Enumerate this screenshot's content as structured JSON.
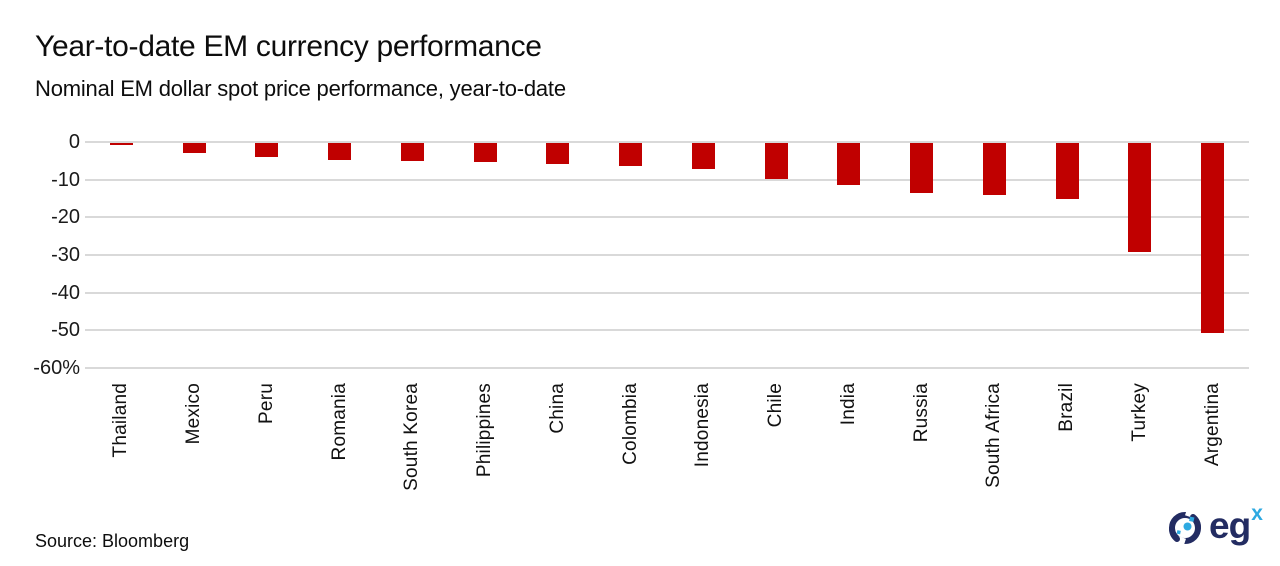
{
  "chart_data": {
    "type": "bar",
    "title": "Year-to-date EM currency performance",
    "subtitle": "Nominal EM dollar spot price performance, year-to-date",
    "categories": [
      "Thailand",
      "Mexico",
      "Peru",
      "Romania",
      "South Korea",
      "Philippines",
      "China",
      "Colombia",
      "Indonesia",
      "Chile",
      "India",
      "Russia",
      "South Africa",
      "Brazil",
      "Turkey",
      "Argentina"
    ],
    "values": [
      -0.6,
      -2.9,
      -4.0,
      -4.9,
      -5.0,
      -5.2,
      -5.9,
      -6.5,
      -7.1,
      -9.8,
      -11.5,
      -13.6,
      -14.2,
      -15.0,
      -29.3,
      -50.6
    ],
    "xlabel": "",
    "ylabel": "",
    "ylim": [
      -60,
      0
    ],
    "yticks": [
      0,
      -10,
      -20,
      -30,
      -40,
      -50,
      -60
    ],
    "ytick_labels": [
      "0",
      "-10",
      "-20",
      "-30",
      "-40",
      "-50",
      "-60%"
    ],
    "grid": true,
    "legend": false,
    "bar_color": "#c00000",
    "gridline_color": "#d9d9d9"
  },
  "footer": {
    "source": "Source: Bloomberg",
    "logo_text": "eg",
    "logo_sup": "x",
    "logo_navy": "#232c62",
    "logo_cyan": "#2da9e1"
  }
}
